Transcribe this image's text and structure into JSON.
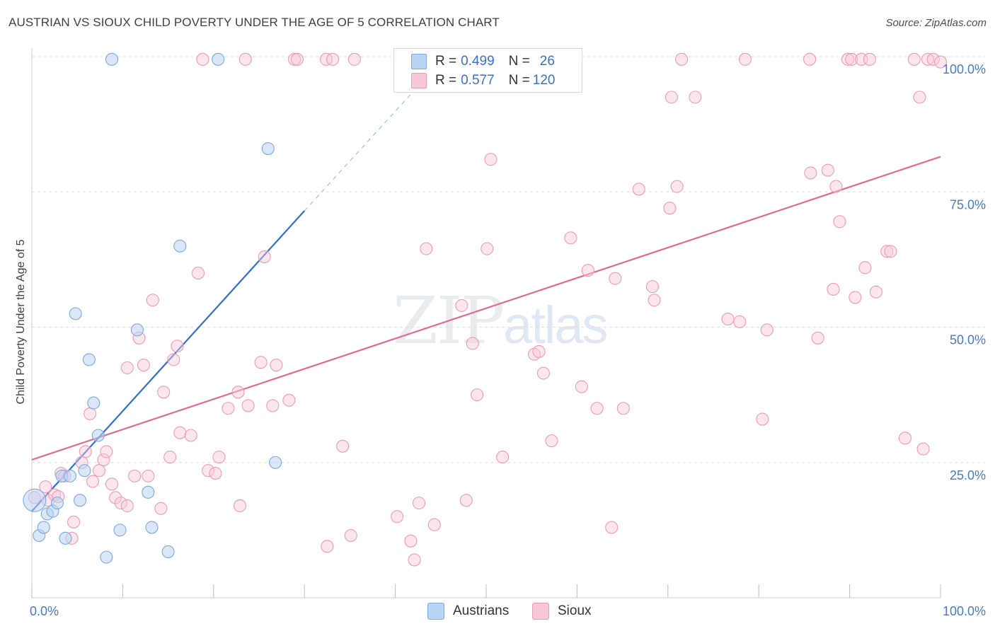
{
  "title": "AUSTRIAN VS SIOUX CHILD POVERTY UNDER THE AGE OF 5 CORRELATION CHART",
  "source": "Source: ZipAtlas.com",
  "watermark": {
    "zip": "ZIP",
    "atlas": "atlas"
  },
  "colors": {
    "austrians_fill": "#b9d3f3",
    "austrians_stroke": "#7ea7e0",
    "austrians_line": "#2f6fcf",
    "sioux_fill": "#f8c8d6",
    "sioux_stroke": "#ee9ab3",
    "sioux_line": "#e06b95",
    "tick_text": "#4a79c8",
    "grid": "#dddddd"
  },
  "legend": {
    "row1": {
      "r_label": "R = ",
      "r_value": "0.499",
      "n_label": "N = ",
      "n_value": "26"
    },
    "row2": {
      "r_label": "R = ",
      "r_value": "0.577",
      "n_label": "N = ",
      "n_value": "120"
    }
  },
  "bottom_legend": {
    "austrians": "Austrians",
    "sioux": "Sioux"
  },
  "chart_data": {
    "type": "scatter",
    "title": "AUSTRIAN VS SIOUX CHILD POVERTY UNDER THE AGE OF 5 CORRELATION CHART",
    "xlabel": "",
    "ylabel": "Child Poverty Under the Age of 5",
    "xlim": [
      0,
      100
    ],
    "ylim": [
      0,
      100
    ],
    "x_tick_labels": [
      "0.0%",
      "100.0%"
    ],
    "y_ticks": [
      {
        "value": 25,
        "label": "25.0%"
      },
      {
        "value": 50,
        "label": "50.0%"
      },
      {
        "value": 75,
        "label": "75.0%"
      },
      {
        "value": 100,
        "label": "100.0%"
      }
    ],
    "grid": true,
    "series": [
      {
        "name": "Austrians",
        "r": 0.499,
        "n": 26,
        "trend": {
          "x0": 0,
          "y0": 16.0,
          "x1": 30,
          "y1": 71.5,
          "dash_to_x": 42.5,
          "dash_to_y": 94.5
        },
        "points": [
          [
            0.3,
            18
          ],
          [
            0.8,
            11.5
          ],
          [
            1.3,
            13
          ],
          [
            1.7,
            15.5
          ],
          [
            2.3,
            16
          ],
          [
            2.8,
            17.5
          ],
          [
            3.3,
            22.5
          ],
          [
            3.7,
            11
          ],
          [
            4.2,
            22.5
          ],
          [
            4.8,
            52.5
          ],
          [
            5.3,
            18
          ],
          [
            5.8,
            23.5
          ],
          [
            6.3,
            44
          ],
          [
            6.8,
            36
          ],
          [
            7.3,
            30
          ],
          [
            8.2,
            7.5
          ],
          [
            8.8,
            99.5
          ],
          [
            9.7,
            12.5
          ],
          [
            11.6,
            49.5
          ],
          [
            12.8,
            19.5
          ],
          [
            13.2,
            13
          ],
          [
            15,
            8.5
          ],
          [
            16.3,
            65
          ],
          [
            20.5,
            99.5
          ],
          [
            26,
            83
          ],
          [
            26.8,
            25
          ]
        ]
      },
      {
        "name": "Sioux",
        "r": 0.577,
        "n": 120,
        "trend": {
          "x0": 0,
          "y0": 25.5,
          "x1": 100,
          "y1": 81.5
        },
        "points": [
          [
            0.3,
            18.5
          ],
          [
            1.5,
            20.5
          ],
          [
            1.8,
            18
          ],
          [
            2.5,
            19
          ],
          [
            3.2,
            23
          ],
          [
            3.6,
            22.5
          ],
          [
            2.9,
            18.7
          ],
          [
            4.4,
            11
          ],
          [
            4.6,
            14
          ],
          [
            5.5,
            25
          ],
          [
            5.9,
            27
          ],
          [
            6.4,
            34
          ],
          [
            6.7,
            21.5
          ],
          [
            7.4,
            23.5
          ],
          [
            7.9,
            25.5
          ],
          [
            8.2,
            27
          ],
          [
            8.8,
            21
          ],
          [
            9.2,
            18.5
          ],
          [
            9.8,
            17.5
          ],
          [
            10.5,
            17
          ],
          [
            10.5,
            42.5
          ],
          [
            11.3,
            22.5
          ],
          [
            11.8,
            48
          ],
          [
            12.3,
            43
          ],
          [
            12.8,
            22.5
          ],
          [
            13.3,
            55
          ],
          [
            14.2,
            16.5
          ],
          [
            14.5,
            38
          ],
          [
            15.2,
            26
          ],
          [
            15.6,
            44
          ],
          [
            16,
            46.5
          ],
          [
            16.3,
            30.5
          ],
          [
            17.5,
            30
          ],
          [
            18.8,
            99.5
          ],
          [
            18.3,
            60
          ],
          [
            19.4,
            23.5
          ],
          [
            20.2,
            23
          ],
          [
            20.6,
            26
          ],
          [
            21.6,
            35
          ],
          [
            22.7,
            38
          ],
          [
            22.9,
            17
          ],
          [
            23.5,
            99.5
          ],
          [
            23.8,
            35.5
          ],
          [
            25.2,
            43.5
          ],
          [
            25.6,
            63
          ],
          [
            26.5,
            35.5
          ],
          [
            26.9,
            43
          ],
          [
            28.3,
            36.5
          ],
          [
            28.9,
            99.5
          ],
          [
            29.2,
            99.5
          ],
          [
            32.5,
            9.5
          ],
          [
            32.4,
            99.5
          ],
          [
            33.1,
            99.5
          ],
          [
            34.2,
            28
          ],
          [
            35.1,
            11.5
          ],
          [
            35.5,
            99.5
          ],
          [
            40.2,
            15
          ],
          [
            41.7,
            10.5
          ],
          [
            42.1,
            7
          ],
          [
            42.6,
            17.5
          ],
          [
            43.4,
            64.5
          ],
          [
            44.3,
            13.5
          ],
          [
            47.3,
            54
          ],
          [
            47.8,
            18
          ],
          [
            48.5,
            47
          ],
          [
            49,
            37.5
          ],
          [
            50.1,
            64.5
          ],
          [
            50.5,
            81
          ],
          [
            51.8,
            26
          ],
          [
            55.3,
            45
          ],
          [
            55.8,
            45.5
          ],
          [
            56.3,
            41.5
          ],
          [
            57.2,
            29
          ],
          [
            59.3,
            66.5
          ],
          [
            60.5,
            39
          ],
          [
            61.2,
            60.5
          ],
          [
            62.2,
            35
          ],
          [
            63.8,
            13
          ],
          [
            64.2,
            59
          ],
          [
            65.1,
            35
          ],
          [
            66.8,
            75.5
          ],
          [
            68.3,
            57.5
          ],
          [
            68.5,
            55
          ],
          [
            70.2,
            72
          ],
          [
            70.4,
            92.5
          ],
          [
            71,
            76
          ],
          [
            71.5,
            99.5
          ],
          [
            73,
            92.5
          ],
          [
            76.6,
            51.5
          ],
          [
            77.9,
            51
          ],
          [
            78.5,
            99.5
          ],
          [
            80.4,
            33
          ],
          [
            80.9,
            49.5
          ],
          [
            85.6,
            99.5
          ],
          [
            85.7,
            78.5
          ],
          [
            86.5,
            48
          ],
          [
            87.6,
            79
          ],
          [
            88.2,
            57
          ],
          [
            88.5,
            76
          ],
          [
            88.9,
            69.5
          ],
          [
            89.8,
            99.5
          ],
          [
            90.2,
            99.5
          ],
          [
            90.6,
            55.5
          ],
          [
            91.3,
            99.5
          ],
          [
            91.7,
            61
          ],
          [
            92.2,
            99.5
          ],
          [
            92.9,
            56.5
          ],
          [
            94.1,
            64
          ],
          [
            94.5,
            64
          ],
          [
            96.1,
            29.5
          ],
          [
            97.1,
            99.5
          ],
          [
            97.7,
            92.5
          ],
          [
            98.1,
            27.5
          ],
          [
            98.6,
            99.5
          ],
          [
            99.2,
            99.5
          ],
          [
            100,
            99
          ]
        ]
      }
    ]
  }
}
